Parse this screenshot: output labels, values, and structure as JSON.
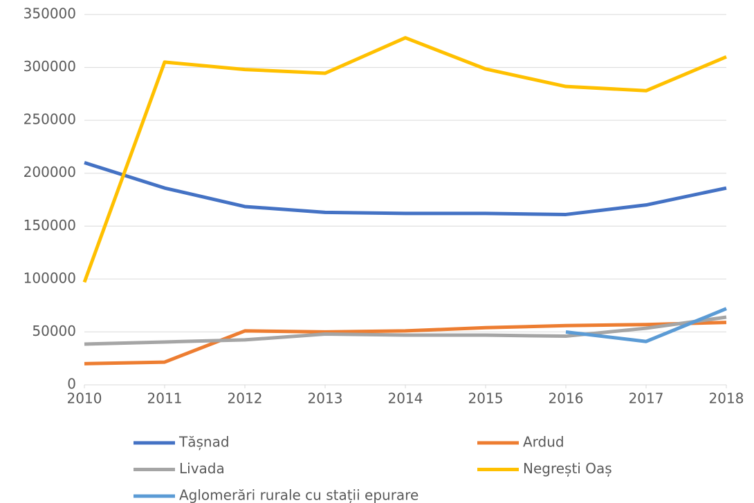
{
  "chart_data": {
    "type": "line",
    "x": [
      2010,
      2011,
      2012,
      2013,
      2014,
      2015,
      2016,
      2017,
      2018
    ],
    "xlim": [
      2010,
      2018
    ],
    "xticks": [
      2010,
      2011,
      2012,
      2013,
      2014,
      2015,
      2016,
      2017,
      2018
    ],
    "ylim": [
      0,
      350000
    ],
    "yticks": [
      0,
      50000,
      100000,
      150000,
      200000,
      250000,
      300000,
      350000
    ],
    "grid": true,
    "legend": "bottom",
    "series": [
      {
        "name": "Tășnad",
        "color": "#4472c4",
        "values": [
          210000,
          186000,
          168500,
          163000,
          162000,
          162000,
          161000,
          170000,
          186000
        ]
      },
      {
        "name": "Ardud",
        "color": "#ed7d31",
        "values": [
          20000,
          21500,
          51000,
          50000,
          51000,
          54000,
          56000,
          57000,
          59000
        ]
      },
      {
        "name": "Livada",
        "color": "#a5a5a5",
        "values": [
          38500,
          40500,
          42500,
          48000,
          47000,
          47000,
          46000,
          53500,
          64000
        ]
      },
      {
        "name": "Negrești Oaș",
        "color": "#ffc000",
        "values": [
          97000,
          305000,
          298000,
          294500,
          328000,
          298500,
          282000,
          278000,
          310000
        ]
      },
      {
        "name": "Aglomerări rurale cu stații epurare",
        "color": "#5b9bd5",
        "values": [
          null,
          null,
          null,
          null,
          null,
          null,
          50000,
          41000,
          72000
        ]
      }
    ]
  }
}
